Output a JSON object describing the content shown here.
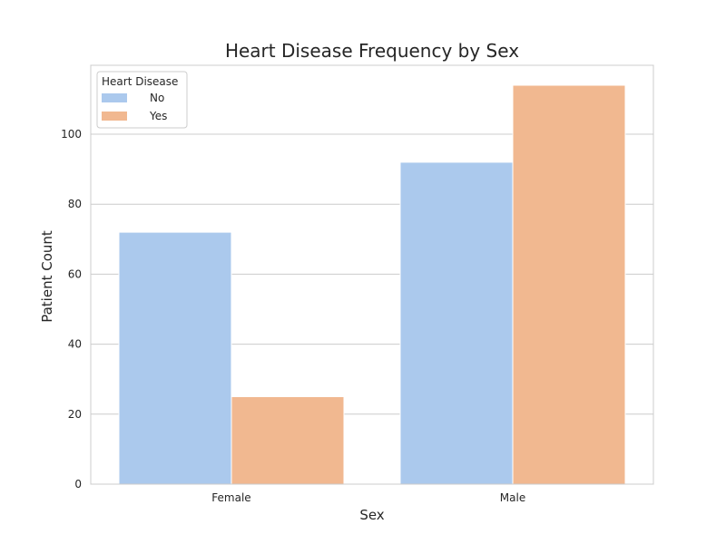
{
  "chart_data": {
    "type": "bar",
    "title": "Heart Disease Frequency by Sex",
    "xlabel": "Sex",
    "ylabel": "Patient Count",
    "categories": [
      "Female",
      "Male"
    ],
    "series": [
      {
        "name": "No",
        "values": [
          72,
          92
        ],
        "color": "#abc9ed"
      },
      {
        "name": "Yes",
        "values": [
          25,
          114
        ],
        "color": "#f1b890"
      }
    ],
    "ylim": [
      0,
      119.7
    ],
    "yticks": [
      0,
      20,
      40,
      60,
      80,
      100
    ],
    "grid": "horizontal",
    "legend": {
      "title": "Heart Disease",
      "placement": "top-left"
    }
  }
}
